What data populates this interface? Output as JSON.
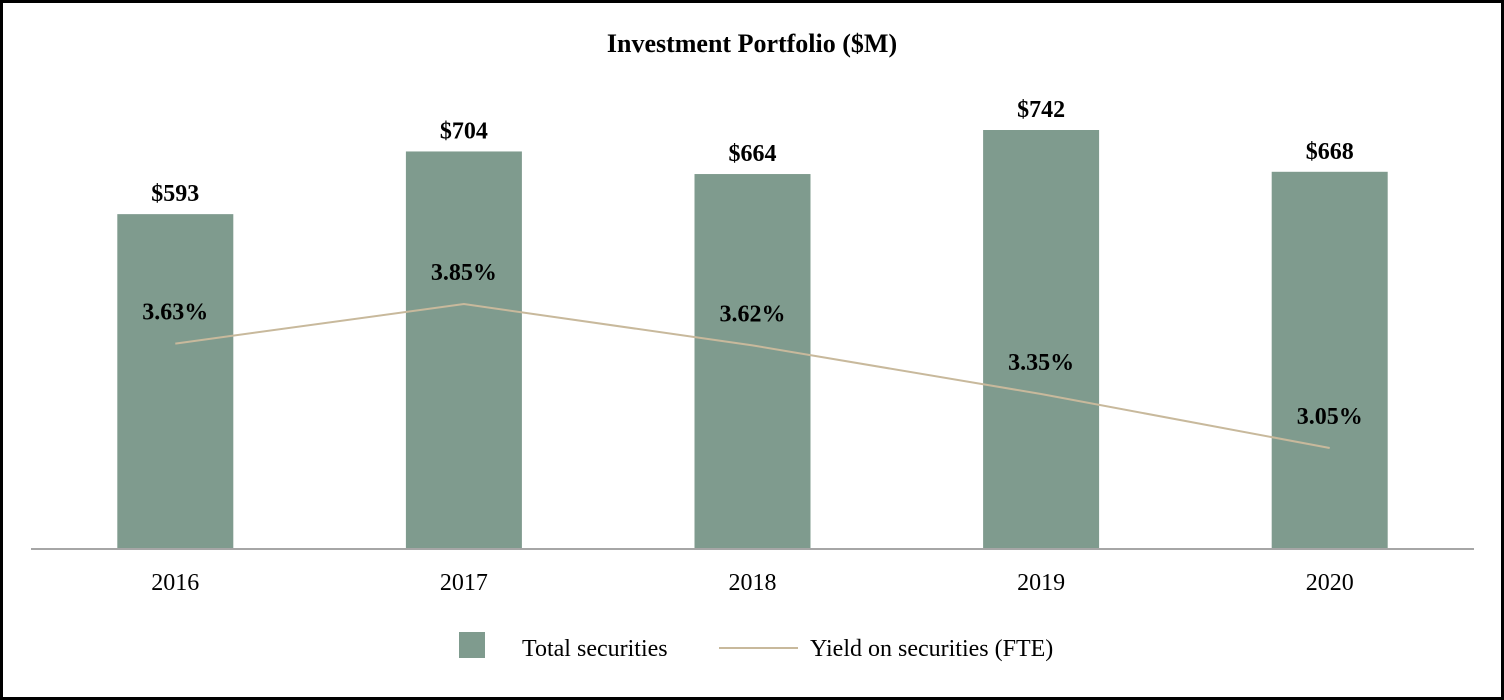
{
  "chart_data": {
    "type": "bar",
    "title": "Investment Portfolio ($M)",
    "categories": [
      "2016",
      "2017",
      "2018",
      "2019",
      "2020"
    ],
    "series": [
      {
        "name": "Total securities",
        "kind": "bar",
        "values": [
          593,
          704,
          664,
          742,
          668
        ],
        "labels": [
          "$593",
          "$704",
          "$664",
          "$742",
          "$668"
        ],
        "color": "#7f9b8e"
      },
      {
        "name": "Yield on securities (FTE)",
        "kind": "line",
        "values": [
          3.63,
          3.85,
          3.62,
          3.35,
          3.05
        ],
        "labels": [
          "3.63%",
          "3.85%",
          "3.62%",
          "3.35%",
          "3.05%"
        ],
        "color": "#c8b99c"
      }
    ],
    "xlabel": "",
    "ylabel": "",
    "ylim": [
      0,
      750
    ],
    "ylim_secondary": [
      2.3,
      4.05
    ],
    "grid": false,
    "legend_position": "bottom-center",
    "axis_color": "#a6a6a6"
  }
}
